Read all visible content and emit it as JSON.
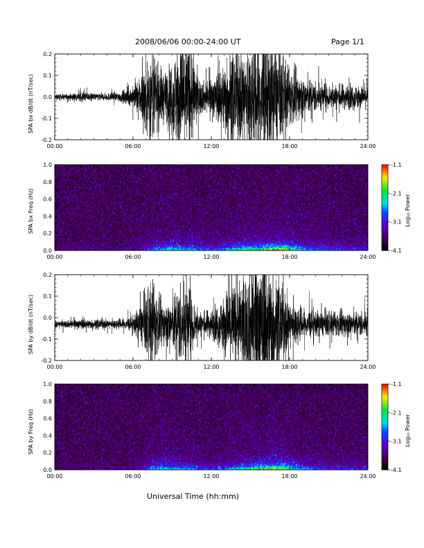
{
  "header": {
    "title": "2008/06/06  00:00-24:00 UT",
    "page": "Page 1/1"
  },
  "x_axis_title": "Universal Time (hh:mm)",
  "chart_data": [
    {
      "type": "line",
      "ylabel": "SPA bx dB/dt (nT/sec)",
      "xlim": [
        0,
        24
      ],
      "ylim": [
        -0.2,
        0.2
      ],
      "x_ticks": [
        "00:00",
        "06:00",
        "12:00",
        "18:00",
        "24:00"
      ],
      "y_ticks": [
        "-0.2",
        "-0.1",
        "0.0",
        "0.1",
        "0.2"
      ],
      "baseline": 0.0,
      "amplitude_envelope": {
        "hours": [
          0,
          1,
          2,
          3,
          4,
          5,
          6,
          6.5,
          7,
          7.5,
          8,
          8.5,
          9,
          9.5,
          10,
          10.5,
          11,
          11.5,
          12,
          12.5,
          13,
          13.5,
          14,
          14.5,
          15,
          15.5,
          16,
          16.5,
          17,
          17.5,
          18,
          18.5,
          19,
          19.5,
          20,
          21,
          22,
          23,
          24
        ],
        "values": [
          0.01,
          0.012,
          0.02,
          0.015,
          0.015,
          0.02,
          0.04,
          0.08,
          0.15,
          0.2,
          0.12,
          0.1,
          0.15,
          0.22,
          0.25,
          0.2,
          0.08,
          0.06,
          0.08,
          0.1,
          0.15,
          0.18,
          0.17,
          0.2,
          0.22,
          0.26,
          0.26,
          0.25,
          0.2,
          0.16,
          0.12,
          0.1,
          0.08,
          0.07,
          0.06,
          0.05,
          0.05,
          0.05,
          0.04
        ]
      }
    },
    {
      "type": "heatmap",
      "ylabel": "SPA bx Freq (Hz)",
      "xlim": [
        0,
        24
      ],
      "ylim": [
        0.0,
        1.0
      ],
      "x_ticks": [
        "00:00",
        "06:00",
        "12:00",
        "18:00",
        "24:00"
      ],
      "y_ticks": [
        "0.0",
        "0.2",
        "0.4",
        "0.6",
        "0.8",
        "1.0"
      ],
      "colorbar": {
        "label": "Log₁₀ Power",
        "range": [
          -4.1,
          -1.1
        ],
        "ticks": [
          "-1.1",
          "-2.1",
          "-3.1",
          "-4.1"
        ]
      },
      "activity_by_hour": [
        0.05,
        0.05,
        0.1,
        0.08,
        0.05,
        0.08,
        0.15,
        0.35,
        0.55,
        0.5,
        0.45,
        0.35,
        0.35,
        0.5,
        0.6,
        0.65,
        0.75,
        0.8,
        0.55,
        0.4,
        0.35,
        0.3,
        0.25,
        0.25
      ]
    },
    {
      "type": "line",
      "ylabel": "SPA by dB/dt (nT/sec)",
      "xlim": [
        0,
        24
      ],
      "ylim": [
        -0.2,
        0.2
      ],
      "x_ticks": [
        "00:00",
        "06:00",
        "12:00",
        "18:00",
        "24:00"
      ],
      "y_ticks": [
        "-0.2",
        "-0.1",
        "0.0",
        "0.1",
        "0.2"
      ],
      "baseline": -0.03,
      "amplitude_envelope": {
        "hours": [
          0,
          1,
          2,
          3,
          4,
          5,
          6,
          6.5,
          7,
          7.5,
          8,
          8.5,
          9,
          9.5,
          10,
          10.5,
          11,
          11.5,
          12,
          12.5,
          13,
          13.5,
          14,
          14.5,
          15,
          15.5,
          16,
          16.5,
          17,
          17.5,
          18,
          18.5,
          19,
          19.5,
          20,
          21,
          22,
          23,
          24
        ],
        "values": [
          0.012,
          0.015,
          0.02,
          0.018,
          0.018,
          0.02,
          0.03,
          0.07,
          0.12,
          0.18,
          0.1,
          0.08,
          0.1,
          0.15,
          0.18,
          0.12,
          0.05,
          0.05,
          0.06,
          0.08,
          0.12,
          0.18,
          0.15,
          0.2,
          0.22,
          0.28,
          0.28,
          0.25,
          0.18,
          0.14,
          0.1,
          0.08,
          0.06,
          0.06,
          0.05,
          0.05,
          0.05,
          0.05,
          0.05
        ]
      }
    },
    {
      "type": "heatmap",
      "ylabel": "SPA by Freq (Hz)",
      "xlim": [
        0,
        24
      ],
      "ylim": [
        0.0,
        1.0
      ],
      "x_ticks": [
        "00:00",
        "06:00",
        "12:00",
        "18:00",
        "24:00"
      ],
      "y_ticks": [
        "0.0",
        "0.2",
        "0.4",
        "0.6",
        "0.8",
        "1.0"
      ],
      "colorbar": {
        "label": "Log₁₀ Power",
        "range": [
          -4.1,
          -1.1
        ],
        "ticks": [
          "-1.1",
          "-2.1",
          "-3.1",
          "-4.1"
        ]
      },
      "activity_by_hour": [
        0.05,
        0.05,
        0.08,
        0.08,
        0.06,
        0.08,
        0.15,
        0.45,
        0.5,
        0.45,
        0.4,
        0.3,
        0.3,
        0.45,
        0.55,
        0.65,
        0.75,
        0.8,
        0.5,
        0.35,
        0.3,
        0.25,
        0.25,
        0.25
      ]
    }
  ]
}
